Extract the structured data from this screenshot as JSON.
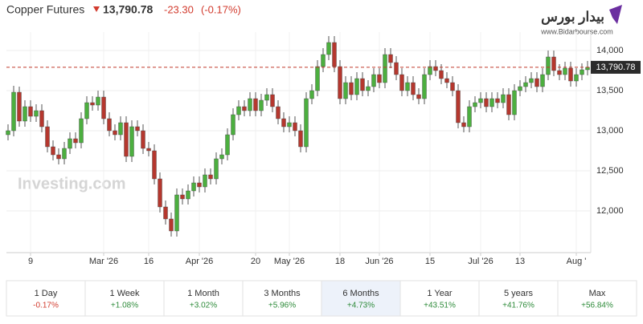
{
  "header": {
    "title": "Copper Futures",
    "price": "13,790.78",
    "change": "-23.30",
    "change_pct": "(-0.17%)"
  },
  "logo": {
    "name": "بیدار بورس",
    "url": "www.Bidarbourse.com"
  },
  "watermark": "Investing.com",
  "chart_data": {
    "type": "candlestick",
    "categories": [
      null,
      null,
      null,
      null,
      "9",
      null,
      null,
      null,
      null,
      null,
      null,
      null,
      null,
      null,
      null,
      null,
      null,
      "Mar '26",
      null,
      null,
      null,
      null,
      null,
      null,
      null,
      "16",
      null,
      null,
      null,
      null,
      null,
      null,
      null,
      null,
      "Apr '26",
      null,
      null,
      null,
      null,
      null,
      null,
      null,
      null,
      null,
      "20",
      null,
      null,
      null,
      null,
      null,
      "May '26",
      null,
      null,
      null,
      null,
      null,
      null,
      null,
      null,
      "18",
      null,
      null,
      null,
      null,
      null,
      null,
      "Jun '26",
      null,
      null,
      null,
      null,
      null,
      null,
      null,
      null,
      "15",
      null,
      null,
      null,
      null,
      null,
      null,
      null,
      null,
      "Jul '26",
      null,
      null,
      null,
      null,
      null,
      null,
      "13",
      null,
      null,
      null,
      null,
      null,
      null,
      null,
      null,
      null,
      "Aug '",
      null,
      null
    ],
    "open": [
      12950,
      13000,
      13480,
      13120,
      13300,
      13180,
      13250,
      13050,
      12800,
      12700,
      12650,
      12780,
      12900,
      12850,
      13150,
      13350,
      13320,
      13420,
      13150,
      13000,
      12950,
      13100,
      12680,
      13050,
      13000,
      12780,
      12750,
      12400,
      12050,
      11900,
      11750,
      12200,
      12150,
      12250,
      12350,
      12300,
      12450,
      12400,
      12650,
      12700,
      12950,
      13200,
      13300,
      13250,
      13400,
      13250,
      13380,
      13450,
      13300,
      13150,
      13050,
      13100,
      13000,
      12800,
      13400,
      13500,
      13800,
      13950,
      14100,
      13800,
      13400,
      13600,
      13450,
      13650,
      13500,
      13550,
      13700,
      13600,
      13950,
      13850,
      13700,
      13500,
      13600,
      13450,
      13400,
      13700,
      13800,
      13750,
      13650,
      13600,
      13500,
      13100,
      13050,
      13300,
      13350,
      13400,
      13300,
      13400,
      13350,
      13450,
      13200,
      13500,
      13550,
      13600,
      13650,
      13550,
      13700,
      13920,
      13750,
      13700,
      13780,
      13620,
      13700,
      13760
    ],
    "high": [
      13080,
      13560,
      13550,
      13380,
      13380,
      13330,
      13330,
      13130,
      12880,
      12780,
      12860,
      12980,
      12980,
      13230,
      13430,
      13430,
      13500,
      13500,
      13230,
      13080,
      13180,
      13180,
      13130,
      13130,
      13080,
      12860,
      12830,
      12480,
      12130,
      11980,
      12280,
      12280,
      12330,
      12430,
      12430,
      12530,
      12530,
      12730,
      12780,
      13030,
      13280,
      13380,
      13380,
      13480,
      13480,
      13460,
      13530,
      13530,
      13380,
      13230,
      13180,
      13180,
      13080,
      13480,
      13580,
      13880,
      14030,
      14180,
      14180,
      13880,
      13680,
      13680,
      13730,
      13730,
      13630,
      13780,
      13780,
      14030,
      14030,
      13930,
      13780,
      13680,
      13680,
      13530,
      13780,
      13880,
      13880,
      13830,
      13730,
      13680,
      13580,
      13180,
      13380,
      13430,
      13480,
      13480,
      13480,
      13480,
      13530,
      13530,
      13580,
      13630,
      13680,
      13730,
      13730,
      13780,
      14000,
      14000,
      13830,
      13860,
      13860,
      13780,
      13840,
      13870
    ],
    "low": [
      12880,
      12930,
      13050,
      13050,
      13110,
      13110,
      12980,
      12730,
      12630,
      12580,
      12580,
      12710,
      12780,
      12780,
      13080,
      13250,
      13250,
      13080,
      12930,
      12880,
      12880,
      12610,
      12610,
      12930,
      12710,
      12680,
      12330,
      11980,
      11830,
      11680,
      11680,
      12080,
      12080,
      12180,
      12230,
      12230,
      12330,
      12330,
      12580,
      12630,
      12880,
      13130,
      13180,
      13180,
      13180,
      13180,
      13310,
      13230,
      13080,
      12980,
      12980,
      12930,
      12730,
      12730,
      13330,
      13430,
      13730,
      13880,
      13730,
      13330,
      13330,
      13380,
      13380,
      13430,
      13430,
      13480,
      13530,
      13530,
      13780,
      13630,
      13430,
      13430,
      13380,
      13330,
      13330,
      13630,
      13680,
      13580,
      13530,
      13430,
      13030,
      12980,
      12980,
      13230,
      13280,
      13230,
      13230,
      13280,
      13280,
      13130,
      13130,
      13430,
      13480,
      13530,
      13480,
      13480,
      13630,
      13680,
      13630,
      13630,
      13550,
      13550,
      13630,
      13690
    ],
    "close": [
      13000,
      13480,
      13120,
      13300,
      13180,
      13250,
      13050,
      12800,
      12700,
      12650,
      12780,
      12900,
      12850,
      13150,
      13350,
      13320,
      13420,
      13150,
      13000,
      12950,
      13100,
      12680,
      13050,
      13000,
      12780,
      12750,
      12400,
      12050,
      11900,
      11750,
      12200,
      12150,
      12250,
      12350,
      12300,
      12450,
      12400,
      12650,
      12700,
      12950,
      13200,
      13300,
      13250,
      13400,
      13250,
      13380,
      13450,
      13300,
      13150,
      13050,
      13100,
      13000,
      12800,
      13400,
      13500,
      13800,
      13950,
      14100,
      13800,
      13400,
      13600,
      13450,
      13650,
      13500,
      13550,
      13700,
      13600,
      13950,
      13850,
      13700,
      13500,
      13600,
      13450,
      13400,
      13700,
      13800,
      13750,
      13650,
      13600,
      13500,
      13100,
      13050,
      13300,
      13350,
      13400,
      13300,
      13400,
      13350,
      13450,
      13200,
      13500,
      13550,
      13600,
      13650,
      13550,
      13700,
      13920,
      13750,
      13700,
      13780,
      13620,
      13700,
      13760,
      13790.78
    ],
    "up_color": "#4caf3f",
    "down_color": "#b5372e",
    "last_value": 13790.78,
    "last_value_label": "13,790.78",
    "last_color": "#c0392b",
    "ylim": [
      11480,
      14230
    ],
    "yticks": [
      {
        "value": 12000,
        "label": "12,000"
      },
      {
        "value": 12500,
        "label": "12,500"
      },
      {
        "value": 13000,
        "label": "13,000"
      },
      {
        "value": 13500,
        "label": "13,500"
      },
      {
        "value": 14000,
        "label": "14,000"
      }
    ],
    "grid": true
  },
  "tabs": [
    {
      "label": "1 Day",
      "change": "-0.17%"
    },
    {
      "label": "1 Week",
      "change": "+1.08%"
    },
    {
      "label": "1 Month",
      "change": "+3.02%"
    },
    {
      "label": "3 Months",
      "change": "+5.96%"
    },
    {
      "label": "6 Months",
      "change": "+4.73%",
      "active": true
    },
    {
      "label": "1 Year",
      "change": "+43.51%"
    },
    {
      "label": "5 years",
      "change": "+41.76%"
    },
    {
      "label": "Max",
      "change": "+56.84%"
    }
  ]
}
